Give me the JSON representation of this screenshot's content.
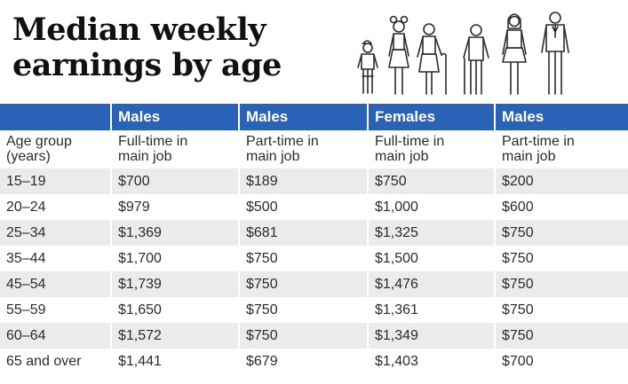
{
  "title": [
    "Median weekly",
    "earnings by age"
  ],
  "header": {
    "groups": [
      "",
      "Males",
      "Males",
      "Females",
      "Males"
    ],
    "subheads": [
      [
        "Age group",
        "(years)"
      ],
      [
        "Full-time in",
        "main job"
      ],
      [
        "Part-time in",
        "main job"
      ],
      [
        "Full-time in",
        "main job"
      ],
      [
        "Part-time in",
        "main job"
      ]
    ]
  },
  "rows": [
    [
      "15–19",
      "$700",
      "$189",
      "$750",
      "$200"
    ],
    [
      "20–24",
      "$979",
      "$500",
      "$1,000",
      "$600"
    ],
    [
      "25–34",
      "$1,369",
      "$681",
      "$1,325",
      "$750"
    ],
    [
      "35–44",
      "$1,700",
      "$750",
      "$1,500",
      "$750"
    ],
    [
      "45–54",
      "$1,739",
      "$750",
      "$1,476",
      "$750"
    ],
    [
      "55–59",
      "$1,650",
      "$750",
      "$1,361",
      "$750"
    ],
    [
      "60–64",
      "$1,572",
      "$750",
      "$1,349",
      "$750"
    ],
    [
      "65 and over",
      "$1,441",
      "$679",
      "$1,403",
      "$700"
    ]
  ],
  "colors": {
    "header": "#2a62b7",
    "stripe": "#ebebeb",
    "illustration_stroke": "#2b2b2b"
  },
  "illustration": "people-of-different-ages-icon",
  "chart_data": {
    "type": "table",
    "title": "Median weekly earnings by age",
    "columns": [
      "Age group (years)",
      "Males Full-time in main job",
      "Males Part-time in main job",
      "Females Full-time in main job",
      "Males Part-time in main job"
    ],
    "categories": [
      "15–19",
      "20–24",
      "25–34",
      "35–44",
      "45–54",
      "55–59",
      "60–64",
      "65 and over"
    ],
    "series": [
      {
        "name": "Males Full-time in main job",
        "values": [
          700,
          979,
          1369,
          1700,
          1739,
          1650,
          1572,
          1441
        ]
      },
      {
        "name": "Males Part-time in main job",
        "values": [
          189,
          500,
          681,
          750,
          750,
          750,
          750,
          679
        ]
      },
      {
        "name": "Females Full-time in main job",
        "values": [
          750,
          1000,
          1325,
          1500,
          1476,
          1361,
          1349,
          1403
        ]
      },
      {
        "name": "Males Part-time in main job",
        "values": [
          200,
          600,
          750,
          750,
          750,
          750,
          750,
          700
        ]
      }
    ]
  }
}
